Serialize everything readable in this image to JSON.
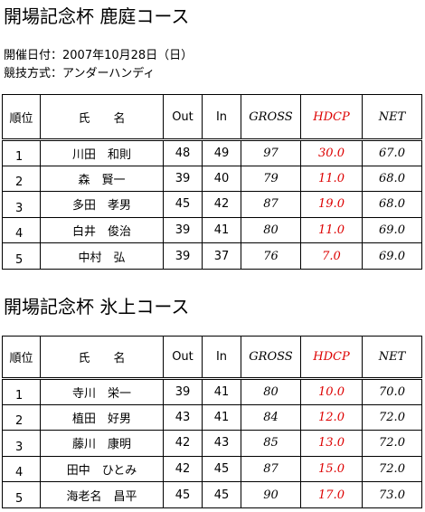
{
  "sections": [
    {
      "title": "開場記念杯 鹿庭コース",
      "info": [
        "開催日付：2007年10月28日（日）",
        "競技方式：アンダーハンディ"
      ],
      "table": {
        "header": [
          "順位",
          "氏　　名",
          "Out",
          "In",
          "GROSS",
          "HDCP",
          "NET"
        ],
        "rows": [
          [
            "1",
            "川田　和則",
            "48",
            "49",
            "97",
            "30.0",
            "67.0"
          ],
          [
            "2",
            "森　賢一",
            "39",
            "40",
            "79",
            "11.0",
            "68.0"
          ],
          [
            "3",
            "多田　孝男",
            "45",
            "42",
            "87",
            "19.0",
            "68.0"
          ],
          [
            "4",
            "白井　俊治",
            "39",
            "41",
            "80",
            "11.0",
            "69.0"
          ],
          [
            "5",
            "中村　弘",
            "39",
            "37",
            "76",
            "7.0",
            "69.0"
          ]
        ]
      }
    },
    {
      "title": "開場記念杯 氷上コース",
      "info": [],
      "table": {
        "header": [
          "順位",
          "氏　　名",
          "Out",
          "In",
          "GROSS",
          "HDCP",
          "NET"
        ],
        "rows": [
          [
            "1",
            "寺川　栄一",
            "39",
            "41",
            "80",
            "10.0",
            "70.0"
          ],
          [
            "2",
            "植田　好男",
            "43",
            "41",
            "84",
            "12.0",
            "72.0"
          ],
          [
            "3",
            "藤川　康明",
            "42",
            "43",
            "85",
            "13.0",
            "72.0"
          ],
          [
            "4",
            "田中　ひとみ",
            "42",
            "45",
            "87",
            "15.0",
            "72.0"
          ],
          [
            "5",
            "海老名　昌平",
            "45",
            "45",
            "90",
            "17.0",
            "73.0"
          ]
        ]
      }
    }
  ]
}
